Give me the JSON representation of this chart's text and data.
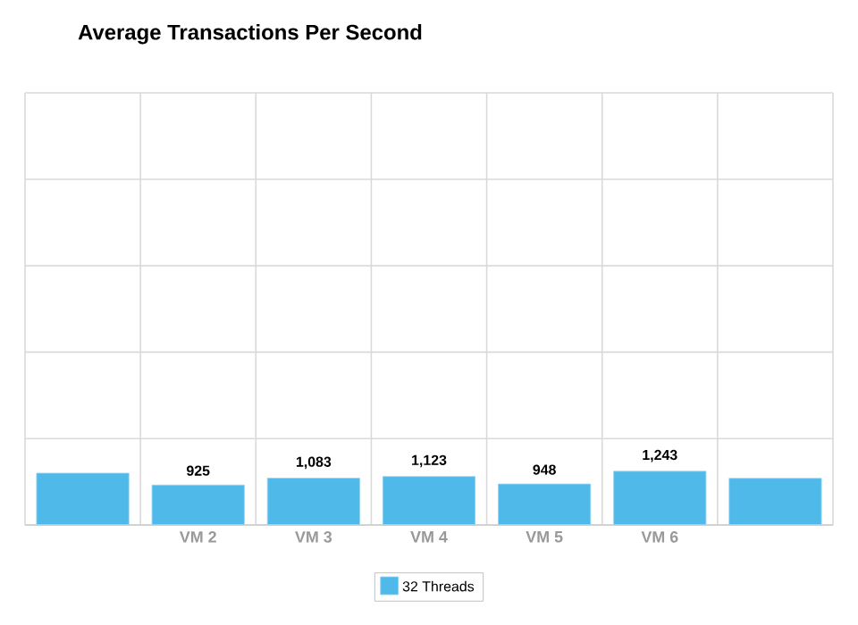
{
  "chart_data": {
    "type": "bar",
    "title": "Average Transactions Per Second",
    "categories": [
      null,
      "VM 2",
      "VM 3",
      "VM 4",
      "VM 5",
      "VM 6",
      null
    ],
    "series": [
      {
        "name": "32 Threads",
        "color": "#4fb9e9",
        "values": [
          1200,
          925,
          1083,
          1123,
          948,
          1243,
          1080
        ],
        "value_labels": [
          null,
          "925",
          "1,083",
          "1,123",
          "948",
          "1,243",
          null
        ]
      }
    ],
    "ylim": [
      0,
      10000
    ],
    "yticks": [
      {
        "value": 0,
        "label": null
      },
      {
        "value": 2000,
        "label": null
      },
      {
        "value": 4000,
        "label": null
      },
      {
        "value": 6000,
        "label": null
      },
      {
        "value": 8000,
        "label": null
      },
      {
        "value": 10000,
        "label": null
      }
    ],
    "tick_labels": "x",
    "grid": true,
    "legend": "bottom"
  }
}
